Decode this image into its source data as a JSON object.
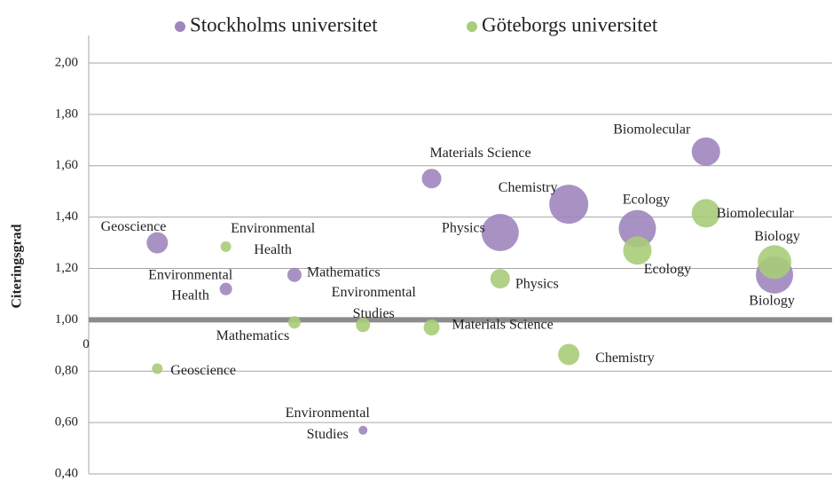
{
  "chart_data": {
    "type": "bubble",
    "y_label": "Citeringsgrad",
    "xlim": [
      0,
      10.84
    ],
    "xticks": [
      0
    ],
    "ylim": [
      0.4,
      2.0
    ],
    "yticks": [
      {
        "value": 0.4,
        "label": "0,40"
      },
      {
        "value": 0.6,
        "label": "0,60"
      },
      {
        "value": 0.8,
        "label": "0,80"
      },
      {
        "value": 1.0,
        "label": "1,00"
      },
      {
        "value": 1.2,
        "label": "1,20"
      },
      {
        "value": 1.4,
        "label": "1,40"
      },
      {
        "value": 1.6,
        "label": "1,60"
      },
      {
        "value": 1.8,
        "label": "1,80"
      },
      {
        "value": 2.0,
        "label": "2,00"
      }
    ],
    "grid": true,
    "x_axis_crossing": 1.0,
    "legend": "top",
    "series": [
      {
        "name": "Stockholms universitet",
        "color": "#9e86bd",
        "labels": [
          "Geoscience",
          "Environmental Health",
          "Mathematics",
          "Environmental Studies",
          "Materials Science",
          "Physics",
          "Chemistry",
          "Ecology",
          "Biomolecular",
          "Biology"
        ],
        "x": [
          1,
          2,
          3,
          4,
          5,
          6,
          7,
          8,
          9,
          10
        ],
        "values": [
          1.3,
          1.12,
          1.175,
          0.57,
          1.55,
          1.34,
          1.45,
          1.355,
          1.655,
          1.175
        ],
        "sizes": [
          144,
          49,
          64,
          25,
          121,
          441,
          484,
          441,
          256,
          441
        ]
      },
      {
        "name": "Göteborgs universitet",
        "color": "#a9cc7a",
        "labels": [
          "Geoscience",
          "Environmental Health",
          "Mathematics",
          "Environmental Studies",
          "Materials Science",
          "Physics",
          "Chemistry",
          "Ecology",
          "Biomolecular",
          "Biology"
        ],
        "x": [
          1,
          2,
          3,
          4,
          5,
          6,
          7,
          8,
          9,
          10
        ],
        "values": [
          0.81,
          1.285,
          0.99,
          0.98,
          0.97,
          1.16,
          0.865,
          1.27,
          1.415,
          1.225
        ],
        "sizes": [
          36,
          36,
          49,
          64,
          81,
          121,
          144,
          256,
          256,
          361
        ]
      }
    ]
  }
}
